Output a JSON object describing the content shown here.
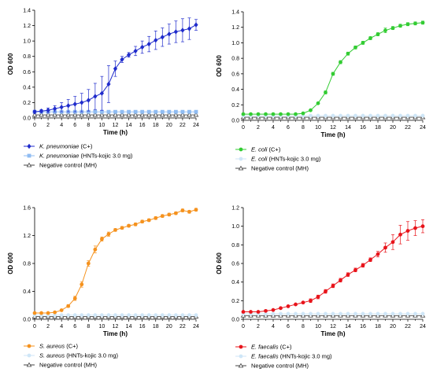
{
  "chart_data": [
    {
      "type": "line",
      "xlabel": "Time (h)",
      "ylabel": "OD 600",
      "xlim": [
        0,
        24
      ],
      "ylim": [
        0,
        1.4
      ],
      "xticks": [
        0,
        2,
        4,
        6,
        8,
        10,
        12,
        14,
        16,
        18,
        20,
        22,
        24
      ],
      "yticks": [
        0.0,
        0.2,
        0.4,
        0.6,
        0.8,
        1.0,
        1.2,
        1.4
      ],
      "ytick_labels": [
        "0.0",
        "0.2",
        "0.4",
        "0.6",
        "0.8",
        "1.0",
        "1.2",
        "1.4"
      ],
      "legend_position": "below",
      "x": [
        0,
        1,
        2,
        3,
        4,
        5,
        6,
        7,
        8,
        9,
        10,
        11,
        12,
        13,
        14,
        15,
        16,
        17,
        18,
        19,
        20,
        21,
        22,
        23,
        24
      ],
      "series": [
        {
          "name": "K. pneumoniae",
          "suffix": " (C+)",
          "color": "#1f2bcc",
          "marker": "diamond",
          "values": [
            0.08,
            0.09,
            0.1,
            0.12,
            0.14,
            0.16,
            0.18,
            0.2,
            0.23,
            0.28,
            0.32,
            0.44,
            0.64,
            0.76,
            0.82,
            0.87,
            0.92,
            0.96,
            1.01,
            1.05,
            1.09,
            1.12,
            1.14,
            1.16,
            1.21
          ],
          "errors": [
            0.02,
            0.02,
            0.03,
            0.04,
            0.06,
            0.08,
            0.1,
            0.12,
            0.14,
            0.17,
            0.22,
            0.24,
            0.1,
            0.04,
            0.03,
            0.06,
            0.08,
            0.1,
            0.12,
            0.12,
            0.13,
            0.14,
            0.15,
            0.14,
            0.07
          ]
        },
        {
          "name": "K. pneumoniae",
          "suffix": " (HNTs-kojic 3.0 mg)",
          "color": "#8fbcf2",
          "marker": "square",
          "values": [
            0.08,
            0.08,
            0.08,
            0.08,
            0.08,
            0.08,
            0.08,
            0.08,
            0.08,
            0.08,
            0.08,
            0.08,
            0.08,
            0.08,
            0.08,
            0.08,
            0.08,
            0.08,
            0.08,
            0.08,
            0.08,
            0.08,
            0.08,
            0.08,
            0.08
          ],
          "errors": []
        },
        {
          "name": "",
          "suffix": "Negative control (MH)",
          "color": "#444444",
          "marker": "triangle",
          "values": [
            0.04,
            0.04,
            0.04,
            0.04,
            0.04,
            0.04,
            0.04,
            0.04,
            0.04,
            0.04,
            0.04,
            0.04,
            0.04,
            0.04,
            0.04,
            0.04,
            0.04,
            0.04,
            0.04,
            0.04,
            0.04,
            0.04,
            0.04,
            0.04,
            0.04
          ],
          "errors": []
        }
      ]
    },
    {
      "type": "line",
      "xlabel": "Time (h)",
      "ylabel": "OD 600",
      "xlim": [
        0,
        24
      ],
      "ylim": [
        0,
        1.4
      ],
      "xticks": [
        0,
        2,
        4,
        6,
        8,
        10,
        12,
        14,
        16,
        18,
        20,
        22,
        24
      ],
      "yticks": [
        0.0,
        0.2,
        0.4,
        0.6,
        0.8,
        1.0,
        1.2,
        1.4
      ],
      "ytick_labels": [
        "0.0",
        "0.2",
        "0.4",
        "0.6",
        "0.8",
        "1.0",
        "1.2",
        "1.4"
      ],
      "legend_position": "below",
      "x": [
        0,
        1,
        2,
        3,
        4,
        5,
        6,
        7,
        8,
        9,
        10,
        11,
        12,
        13,
        14,
        15,
        16,
        17,
        18,
        19,
        20,
        21,
        22,
        23,
        24
      ],
      "series": [
        {
          "name": "E. coli",
          "suffix": " (C+)",
          "color": "#33cc33",
          "marker": "circle",
          "values": [
            0.08,
            0.08,
            0.08,
            0.08,
            0.08,
            0.08,
            0.08,
            0.08,
            0.09,
            0.13,
            0.22,
            0.36,
            0.6,
            0.75,
            0.86,
            0.94,
            1.0,
            1.06,
            1.11,
            1.16,
            1.19,
            1.22,
            1.24,
            1.25,
            1.26
          ],
          "errors": [
            0,
            0,
            0,
            0,
            0,
            0,
            0,
            0,
            0,
            0,
            0.01,
            0.02,
            0.02,
            0.02,
            0.02,
            0.02,
            0.02,
            0.02,
            0.02,
            0.03,
            0.02,
            0.02,
            0.02,
            0.02,
            0.02
          ]
        },
        {
          "name": "E. coli",
          "suffix": " (HNTs-kojic 3.0 mg)",
          "color": "#cfe6f7",
          "marker": "circle",
          "values": [
            0.06,
            0.06,
            0.06,
            0.06,
            0.06,
            0.06,
            0.06,
            0.06,
            0.06,
            0.06,
            0.06,
            0.06,
            0.06,
            0.06,
            0.06,
            0.06,
            0.06,
            0.06,
            0.06,
            0.06,
            0.06,
            0.06,
            0.06,
            0.06,
            0.06
          ],
          "errors": []
        },
        {
          "name": "",
          "suffix": "Negative control (MH)",
          "color": "#444444",
          "marker": "triangle",
          "values": [
            0.04,
            0.04,
            0.04,
            0.04,
            0.04,
            0.04,
            0.04,
            0.04,
            0.04,
            0.04,
            0.04,
            0.04,
            0.04,
            0.04,
            0.04,
            0.04,
            0.04,
            0.04,
            0.04,
            0.04,
            0.04,
            0.04,
            0.04,
            0.04,
            0.04
          ],
          "errors": []
        }
      ]
    },
    {
      "type": "line",
      "xlabel": "Time (h)",
      "ylabel": "OD 600",
      "xlim": [
        0,
        24
      ],
      "ylim": [
        0,
        1.6
      ],
      "xticks": [
        0,
        2,
        4,
        6,
        8,
        10,
        12,
        14,
        16,
        18,
        20,
        22,
        24
      ],
      "yticks": [
        0.0,
        0.4,
        0.8,
        1.2,
        1.6
      ],
      "ytick_labels": [
        "0.0",
        "0.4",
        "0.8",
        "1.2",
        "1.6"
      ],
      "legend_position": "below",
      "x": [
        0,
        1,
        2,
        3,
        4,
        5,
        6,
        7,
        8,
        9,
        10,
        11,
        12,
        13,
        14,
        15,
        16,
        17,
        18,
        19,
        20,
        21,
        22,
        23,
        24
      ],
      "series": [
        {
          "name": "S. aureus",
          "suffix": " (C+)",
          "color": "#f5921e",
          "marker": "circle",
          "values": [
            0.09,
            0.09,
            0.09,
            0.1,
            0.13,
            0.19,
            0.3,
            0.5,
            0.8,
            1.0,
            1.15,
            1.22,
            1.28,
            1.31,
            1.34,
            1.36,
            1.4,
            1.42,
            1.45,
            1.48,
            1.5,
            1.52,
            1.56,
            1.54,
            1.57
          ],
          "errors": [
            0,
            0,
            0,
            0,
            0,
            0.02,
            0.03,
            0.04,
            0.04,
            0.05,
            0.03,
            0.03,
            0.02,
            0.02,
            0.02,
            0.02,
            0.02,
            0.02,
            0.02,
            0.02,
            0.02,
            0.02,
            0.02,
            0.02,
            0.02
          ]
        },
        {
          "name": "S. aureus",
          "suffix": " (HNTs-kojic 3.0 mg)",
          "color": "#cfe6f7",
          "marker": "circle",
          "values": [
            0.06,
            0.06,
            0.06,
            0.06,
            0.06,
            0.06,
            0.06,
            0.06,
            0.06,
            0.06,
            0.06,
            0.06,
            0.06,
            0.06,
            0.06,
            0.06,
            0.06,
            0.06,
            0.06,
            0.06,
            0.06,
            0.06,
            0.06,
            0.06,
            0.06
          ],
          "errors": []
        },
        {
          "name": "",
          "suffix": "Negative control (MH)",
          "color": "#444444",
          "marker": "triangle",
          "values": [
            0.04,
            0.04,
            0.04,
            0.04,
            0.04,
            0.04,
            0.04,
            0.04,
            0.04,
            0.04,
            0.04,
            0.04,
            0.04,
            0.04,
            0.04,
            0.04,
            0.04,
            0.04,
            0.04,
            0.04,
            0.04,
            0.04,
            0.04,
            0.04,
            0.04
          ],
          "errors": []
        }
      ]
    },
    {
      "type": "line",
      "xlabel": "Time (h)",
      "ylabel": "OD 600",
      "xlim": [
        0,
        24
      ],
      "ylim": [
        0,
        1.2
      ],
      "xticks": [
        0,
        2,
        4,
        6,
        8,
        10,
        12,
        14,
        16,
        18,
        20,
        22,
        24
      ],
      "yticks": [
        0.0,
        0.2,
        0.4,
        0.6,
        0.8,
        1.0,
        1.2
      ],
      "ytick_labels": [
        "0.0",
        "0.2",
        "0.4",
        "0.6",
        "0.8",
        "1.0",
        "1.2"
      ],
      "legend_position": "below",
      "x": [
        0,
        1,
        2,
        3,
        4,
        5,
        6,
        7,
        8,
        9,
        10,
        11,
        12,
        13,
        14,
        15,
        16,
        17,
        18,
        19,
        20,
        21,
        22,
        23,
        24
      ],
      "series": [
        {
          "name": "E. faecalis",
          "suffix": " (C+)",
          "color": "#e8141b",
          "marker": "circle",
          "values": [
            0.08,
            0.08,
            0.08,
            0.09,
            0.1,
            0.12,
            0.14,
            0.16,
            0.18,
            0.2,
            0.24,
            0.3,
            0.36,
            0.42,
            0.48,
            0.53,
            0.58,
            0.64,
            0.7,
            0.77,
            0.83,
            0.91,
            0.95,
            0.98,
            1.0
          ],
          "errors": [
            0,
            0,
            0,
            0,
            0,
            0,
            0,
            0,
            0.01,
            0.02,
            0.02,
            0.02,
            0.02,
            0.02,
            0.02,
            0.02,
            0.02,
            0.02,
            0.03,
            0.05,
            0.08,
            0.1,
            0.1,
            0.08,
            0.07
          ]
        },
        {
          "name": "E. faecalis",
          "suffix": " (HNTs-kojic 3.0 mg)",
          "color": "#cfe6f7",
          "marker": "circle",
          "values": [
            0.06,
            0.06,
            0.06,
            0.06,
            0.06,
            0.06,
            0.06,
            0.06,
            0.06,
            0.06,
            0.06,
            0.06,
            0.06,
            0.06,
            0.06,
            0.06,
            0.06,
            0.06,
            0.06,
            0.06,
            0.06,
            0.06,
            0.06,
            0.06,
            0.06
          ],
          "errors": []
        },
        {
          "name": "",
          "suffix": "Negative control (MH)",
          "color": "#444444",
          "marker": "triangle",
          "values": [
            0.04,
            0.04,
            0.04,
            0.04,
            0.04,
            0.04,
            0.04,
            0.04,
            0.04,
            0.04,
            0.04,
            0.04,
            0.04,
            0.04,
            0.04,
            0.04,
            0.04,
            0.04,
            0.04,
            0.04,
            0.04,
            0.04,
            0.04,
            0.04,
            0.04
          ],
          "errors": []
        }
      ]
    }
  ]
}
